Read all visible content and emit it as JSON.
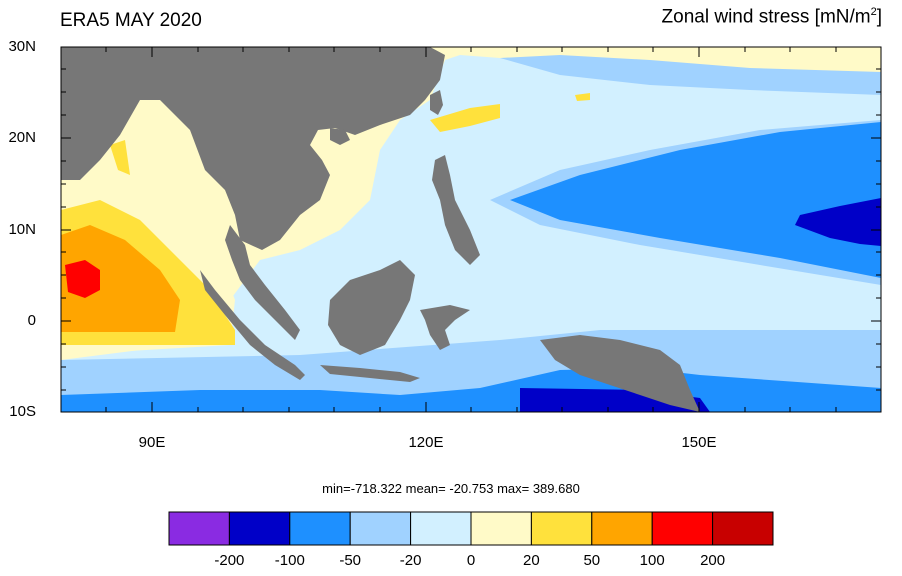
{
  "title_left": "ERA5 MAY 2020",
  "title_right_main": "Zonal wind stress [mN/m",
  "title_right_sup": "2",
  "title_right_end": "]",
  "stats": "min=-718.322  mean= -20.753  max= 389.680",
  "axes": {
    "y_labels": [
      "30N",
      "20N",
      "10N",
      "0",
      "10S"
    ],
    "x_labels": [
      "90E",
      "120E",
      "150E"
    ]
  },
  "colorbar": {
    "colors": [
      "#8a2be2",
      "#0000c8",
      "#1e90ff",
      "#a0d2ff",
      "#d2f0ff",
      "#fffac8",
      "#ffe13c",
      "#ffa500",
      "#ff0000",
      "#c80000"
    ],
    "labels": [
      "-200",
      "-100",
      "-50",
      "-20",
      "0",
      "20",
      "50",
      "100",
      "200"
    ]
  },
  "land_color": "#777777"
}
